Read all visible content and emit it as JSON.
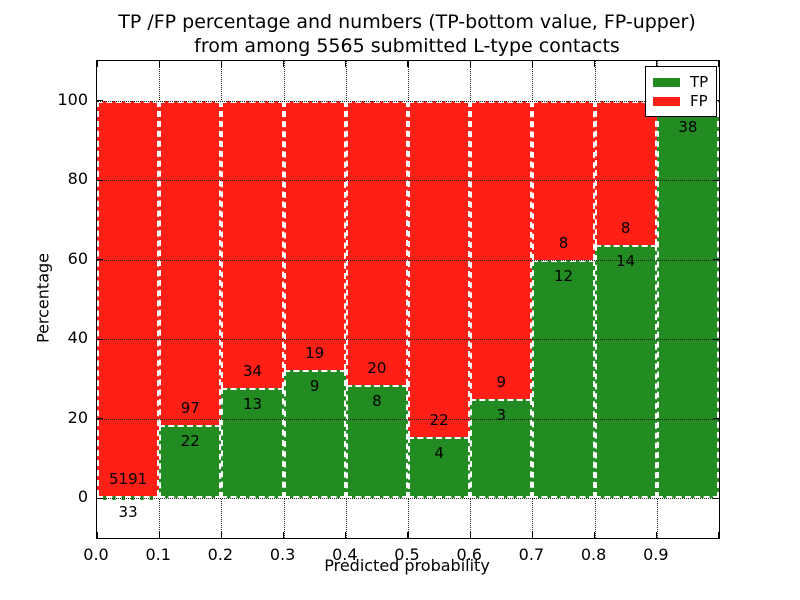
{
  "title": {
    "line1": "TP /FP percentage and numbers (TP-bottom value, FP-upper)",
    "line2": "from among 5565 submitted L-type contacts"
  },
  "axes": {
    "xlabel": "Predicted probability",
    "ylabel": "Percentage",
    "x_tick_labels": [
      "0.0",
      "0.1",
      "0.2",
      "0.3",
      "0.4",
      "0.5",
      "0.6",
      "0.7",
      "0.8",
      "0.9"
    ],
    "x_tick_values": [
      0.0,
      0.1,
      0.2,
      0.3,
      0.4,
      0.5,
      0.6,
      0.7,
      0.8,
      0.9,
      1.0
    ],
    "y_tick_labels": [
      "0",
      "20",
      "40",
      "60",
      "80",
      "100"
    ],
    "y_tick_values": [
      0,
      20,
      40,
      60,
      80,
      100
    ],
    "xlim": [
      0.0,
      1.0
    ],
    "ylim": [
      -10,
      110
    ],
    "grid_style": "dotted"
  },
  "legend": {
    "position": "upper-right",
    "items": [
      {
        "label": "TP",
        "color": "#228b22"
      },
      {
        "label": "FP",
        "color": "#fe2016"
      }
    ]
  },
  "chart_data": {
    "type": "bar",
    "stacking": "percentage-stacked",
    "title": "TP /FP percentage and numbers (TP-bottom value, FP-upper) from among 5565 submitted L-type contacts",
    "xlabel": "Predicted probability",
    "ylabel": "Percentage",
    "xlim": [
      0.0,
      1.0
    ],
    "ylim": [
      -10,
      110
    ],
    "grid": "dotted",
    "legend_position": "upper-right",
    "total_submitted": 5565,
    "bin_edges": [
      0.0,
      0.1,
      0.2,
      0.3,
      0.4,
      0.5,
      0.6,
      0.7,
      0.8,
      0.9,
      1.0
    ],
    "categories": [
      "0.0-0.1",
      "0.1-0.2",
      "0.2-0.3",
      "0.3-0.4",
      "0.4-0.5",
      "0.5-0.6",
      "0.6-0.7",
      "0.7-0.8",
      "0.8-0.9",
      "0.9-1.0"
    ],
    "series": [
      {
        "name": "TP",
        "color": "#228b22",
        "counts": [
          33,
          22,
          13,
          9,
          8,
          4,
          3,
          12,
          14,
          38
        ],
        "percent": [
          0.63,
          18.49,
          27.66,
          32.14,
          28.57,
          15.38,
          25.0,
          60.0,
          63.64,
          97.44
        ]
      },
      {
        "name": "FP",
        "color": "#fe2016",
        "counts": [
          5191,
          97,
          34,
          19,
          20,
          22,
          9,
          8,
          8,
          null
        ],
        "percent": [
          99.37,
          81.51,
          72.34,
          67.86,
          71.43,
          84.62,
          75.0,
          40.0,
          36.36,
          2.56
        ]
      }
    ],
    "bar_labels": {
      "tp": [
        "33",
        "22",
        "13",
        "9",
        "8",
        "4",
        "3",
        "12",
        "14",
        "38"
      ],
      "fp": [
        "5191",
        "97",
        "34",
        "19",
        "20",
        "22",
        "9",
        "8",
        "8",
        null
      ]
    }
  }
}
